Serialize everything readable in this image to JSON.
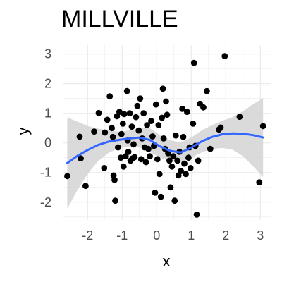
{
  "chart_data": {
    "type": "scatter",
    "title": "MILLVILLE",
    "xlabel": "x",
    "ylabel": "y",
    "xlim": [
      -2.7,
      3.3
    ],
    "ylim": [
      -2.6,
      3.3
    ],
    "x_ticks": [
      -2,
      -1,
      0,
      1,
      2,
      3
    ],
    "y_ticks": [
      -2,
      -1,
      0,
      1,
      2,
      3
    ],
    "grid": true,
    "theme": "minimal",
    "colors": {
      "points": "#000000",
      "smooth_line": "#3366ff",
      "confidence_band": "#d3d3d3",
      "grid_major": "#ebebeb",
      "tick_label": "#4d4d4d"
    },
    "points": [
      {
        "x": -2.59,
        "y": -1.12
      },
      {
        "x": -2.23,
        "y": 0.21
      },
      {
        "x": -2.2,
        "y": -0.52
      },
      {
        "x": -2.06,
        "y": -1.45
      },
      {
        "x": -1.81,
        "y": 0.38
      },
      {
        "x": -1.68,
        "y": 1.01
      },
      {
        "x": -1.5,
        "y": 0.35
      },
      {
        "x": -1.52,
        "y": -0.85
      },
      {
        "x": -1.43,
        "y": 0.78
      },
      {
        "x": -1.36,
        "y": 1.57
      },
      {
        "x": -1.3,
        "y": 0.5
      },
      {
        "x": -1.27,
        "y": 0.2
      },
      {
        "x": -1.25,
        "y": -1.1
      },
      {
        "x": -1.22,
        "y": -1.25
      },
      {
        "x": -1.2,
        "y": -1.95
      },
      {
        "x": -1.15,
        "y": 0.9
      },
      {
        "x": -1.12,
        "y": -0.15
      },
      {
        "x": -1.08,
        "y": 1.05
      },
      {
        "x": -1.04,
        "y": -0.5
      },
      {
        "x": -1.02,
        "y": 0.3
      },
      {
        "x": -0.98,
        "y": 0.65
      },
      {
        "x": -0.96,
        "y": -0.8
      },
      {
        "x": -0.94,
        "y": 0.97
      },
      {
        "x": -0.9,
        "y": -0.45
      },
      {
        "x": -0.86,
        "y": 1.75
      },
      {
        "x": -0.84,
        "y": 0.08
      },
      {
        "x": -0.82,
        "y": -0.3
      },
      {
        "x": -0.78,
        "y": 1.0
      },
      {
        "x": -0.76,
        "y": -0.6
      },
      {
        "x": -0.72,
        "y": 0.55
      },
      {
        "x": -0.7,
        "y": -0.52
      },
      {
        "x": -0.67,
        "y": -0.05
      },
      {
        "x": -0.64,
        "y": -0.48
      },
      {
        "x": -0.6,
        "y": 0.87
      },
      {
        "x": -0.56,
        "y": 1.25
      },
      {
        "x": -0.52,
        "y": 0.42
      },
      {
        "x": -0.48,
        "y": 1.5
      },
      {
        "x": -0.45,
        "y": -0.55
      },
      {
        "x": -0.42,
        "y": 0.15
      },
      {
        "x": -0.38,
        "y": 1.0
      },
      {
        "x": -0.35,
        "y": -0.15
      },
      {
        "x": -0.31,
        "y": -0.65
      },
      {
        "x": -0.28,
        "y": 0.6
      },
      {
        "x": -0.24,
        "y": -0.2
      },
      {
        "x": -0.2,
        "y": -0.45
      },
      {
        "x": -0.16,
        "y": 0.74
      },
      {
        "x": -0.12,
        "y": 0.22
      },
      {
        "x": -0.08,
        "y": -0.1
      },
      {
        "x": -0.05,
        "y": -1.68
      },
      {
        "x": -0.02,
        "y": 1.3
      },
      {
        "x": 0.02,
        "y": -0.55
      },
      {
        "x": 0.05,
        "y": 0.6
      },
      {
        "x": 0.08,
        "y": -1.05
      },
      {
        "x": 0.12,
        "y": -1.82
      },
      {
        "x": 0.15,
        "y": 0.85
      },
      {
        "x": 0.18,
        "y": 1.83
      },
      {
        "x": 0.2,
        "y": 0.15
      },
      {
        "x": 0.24,
        "y": -0.2
      },
      {
        "x": 0.27,
        "y": 1.4
      },
      {
        "x": 0.3,
        "y": 0.95
      },
      {
        "x": 0.33,
        "y": -0.35
      },
      {
        "x": 0.37,
        "y": -0.6
      },
      {
        "x": 0.4,
        "y": -1.5
      },
      {
        "x": 0.44,
        "y": -0.8
      },
      {
        "x": 0.48,
        "y": -0.45
      },
      {
        "x": 0.52,
        "y": -1.95
      },
      {
        "x": 0.55,
        "y": 0.25
      },
      {
        "x": 0.6,
        "y": -0.6
      },
      {
        "x": 0.63,
        "y": -1.1
      },
      {
        "x": 0.66,
        "y": -0.3
      },
      {
        "x": 0.7,
        "y": -0.95
      },
      {
        "x": 0.74,
        "y": 1.15
      },
      {
        "x": 0.77,
        "y": 0.2
      },
      {
        "x": 0.8,
        "y": -0.7
      },
      {
        "x": 0.84,
        "y": -1.05
      },
      {
        "x": 0.88,
        "y": 1.05
      },
      {
        "x": 0.92,
        "y": -0.5
      },
      {
        "x": 0.95,
        "y": -0.15
      },
      {
        "x": 0.98,
        "y": -0.85
      },
      {
        "x": 1.05,
        "y": 0.65
      },
      {
        "x": 1.08,
        "y": 2.7
      },
      {
        "x": 1.12,
        "y": -0.1
      },
      {
        "x": 1.16,
        "y": -2.42
      },
      {
        "x": 1.2,
        "y": -0.6
      },
      {
        "x": 1.25,
        "y": 1.32
      },
      {
        "x": 1.35,
        "y": 1.2
      },
      {
        "x": 1.45,
        "y": 1.75
      },
      {
        "x": 1.55,
        "y": -0.2
      },
      {
        "x": 1.8,
        "y": 0.45
      },
      {
        "x": 1.85,
        "y": 0.52
      },
      {
        "x": 1.97,
        "y": 2.93
      },
      {
        "x": 2.4,
        "y": 0.88
      },
      {
        "x": 2.97,
        "y": -1.33
      },
      {
        "x": 3.08,
        "y": 0.57
      }
    ],
    "smooth": {
      "method": "loess",
      "x": [
        -2.59,
        -2.3,
        -2.0,
        -1.7,
        -1.4,
        -1.1,
        -0.8,
        -0.5,
        -0.2,
        0.1,
        0.4,
        0.7,
        1.0,
        1.3,
        1.6,
        1.9,
        2.2,
        2.5,
        2.8,
        3.08
      ],
      "y": [
        -0.68,
        -0.44,
        -0.24,
        -0.07,
        0.04,
        0.1,
        0.15,
        0.18,
        0.1,
        -0.12,
        -0.27,
        -0.32,
        -0.16,
        0.05,
        0.2,
        0.29,
        0.32,
        0.31,
        0.26,
        0.18
      ],
      "lower": [
        -2.22,
        -1.6,
        -1.05,
        -0.62,
        -0.34,
        -0.18,
        -0.12,
        -0.15,
        -0.3,
        -0.5,
        -0.62,
        -0.66,
        -0.5,
        -0.32,
        -0.2,
        -0.17,
        -0.23,
        -0.45,
        -0.8,
        -1.15
      ],
      "upper": [
        0.86,
        0.72,
        0.57,
        0.48,
        0.42,
        0.38,
        0.42,
        0.5,
        0.5,
        0.26,
        0.08,
        0.02,
        0.18,
        0.42,
        0.6,
        0.75,
        0.87,
        1.07,
        1.32,
        1.51
      ]
    }
  }
}
